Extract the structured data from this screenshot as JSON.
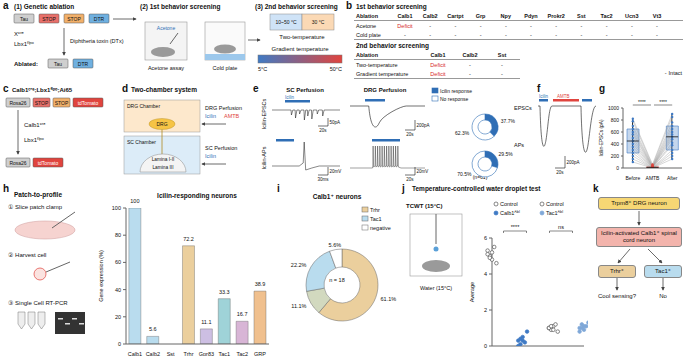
{
  "panels": {
    "a": {
      "letter": "a",
      "step1": {
        "title": "(1) Genetic ablation",
        "construct": [
          "Tau",
          "STOP",
          "STOP",
          "DTR"
        ],
        "drivers": [
          "Xᶜʳᵉ",
          "Lbx1ᶠˡᵖᵒ"
        ],
        "toxin": "Diphtheria toxin (DTx)",
        "ablated_label": "Ablated:",
        "ablated_construct": [
          "Tau",
          "DTR"
        ]
      },
      "step2": {
        "title": "(2) 1st behavior screening",
        "reagent": "Acetone",
        "tests": [
          "Acetone assay",
          "Cold plate"
        ]
      },
      "step3": {
        "title": "(3) 2nd behavior screening",
        "two_temperature": {
          "label": "Two-temperature",
          "zones": [
            "10~50 °C",
            "30 °C"
          ]
        },
        "gradient": {
          "label": "Gradient temperature",
          "ends": [
            "5°C",
            "50°C"
          ]
        }
      }
    },
    "b": {
      "letter": "b",
      "tables": [
        {
          "title": "1st behavior screening",
          "header": [
            "Ablation",
            "Calb1",
            "Calb2",
            "Cartpt",
            "Grp",
            "Npy",
            "Pdyn",
            "Prokr2",
            "Sst",
            "Tac2",
            "Ucn3",
            "Vt3"
          ],
          "rows": [
            [
              "Acetone",
              "Deficit",
              "-",
              "-",
              "-",
              "-",
              "-",
              "-",
              "-",
              "-",
              "-",
              "-"
            ],
            [
              "Cold plate",
              "-",
              "-",
              "-",
              "-",
              "-",
              "-",
              "-",
              "-",
              "-",
              "-",
              "-"
            ]
          ]
        },
        {
          "title": "2nd behavior screening",
          "header": [
            "Ablation",
            "Calb1",
            "Calb2",
            "Sst"
          ],
          "rows": [
            [
              "Two-temperature",
              "Deficit",
              "-",
              "-"
            ],
            [
              "Gradient temperature",
              "Deficit",
              "-",
              "-"
            ]
          ]
        }
      ],
      "key": {
        "symbol": "-",
        "label": "Intact"
      }
    },
    "c": {
      "letter": "c",
      "title": "Calb1ᶜʳᵉ;Lbx1ᶠˡᵖᵒ;Ai65",
      "construct": [
        "Rosa26",
        "STOP",
        "STOP",
        "tdTomato"
      ],
      "drivers": [
        "Calb1ᶜʳᵉ",
        "Lbx1ᶠˡᵖᵒ"
      ],
      "result": [
        "Rosa26",
        "tdTomato"
      ]
    },
    "d": {
      "letter": "d",
      "title": "Two-chamber system",
      "drg_chamber": "DRG Chamber",
      "drg": "DRG",
      "sc_chamber": "SC Chamber",
      "laminae": [
        "Lamina I-II",
        "Lamina III"
      ],
      "drg_perfusion": {
        "label": "DRG Perfusion",
        "drugs": [
          "Icilin",
          "AMTB"
        ]
      },
      "sc_perfusion": {
        "label": "SC Perfusion",
        "drugs": [
          "Icilin"
        ]
      }
    },
    "e": {
      "letter": "e",
      "columns": [
        "SC Perfusion",
        "DRG Perfusion"
      ],
      "rows": [
        "Icilin-EPSCs",
        "Icilin-APs"
      ],
      "stimulus": "Icilin",
      "scale_bars": [
        [
          "50pA",
          "20s"
        ],
        [
          "200pA",
          "20s"
        ],
        [
          "20mV",
          "30ms"
        ],
        [
          "20mV",
          "20s"
        ]
      ],
      "n": "(n=61)"
    },
    "f": {
      "letter": "f",
      "drugs": [
        "Icilin",
        "AMTB"
      ],
      "scale_bar": [
        "200pA",
        "20s"
      ]
    },
    "g": {
      "letter": "g"
    },
    "h": {
      "letter": "h",
      "title": "Patch-to-profile",
      "steps": [
        "① Slice patch clamp",
        "② Harvest cell",
        "③ Single Cell RT-PCR"
      ]
    },
    "i": {
      "letter": "i"
    },
    "j": {
      "letter": "j",
      "test": "TCWT (15°C)",
      "water": "Water (15°C)"
    },
    "k": {
      "letter": "k",
      "nodes": [
        "Trpm8⁺ DRG neuron",
        "Icilin-activated Calb1⁺ spinal cord neuron",
        "Trhr⁺",
        "Tac1⁺"
      ],
      "question": "Cool sensing?",
      "answer": "No"
    }
  },
  "chart_data": [
    {
      "panel": "e",
      "type": "pie",
      "title": "EPSCs",
      "categories": [
        "Icilin response",
        "No response"
      ],
      "values": [
        37.7,
        62.3
      ],
      "value_labels": [
        "37.7%",
        "62.3%"
      ],
      "colors": [
        "#2f6eb5",
        "#ffffff"
      ],
      "data_labels": true,
      "legend": "top"
    },
    {
      "panel": "e",
      "type": "pie",
      "title": "APs",
      "categories": [
        "Icilin response",
        "No response"
      ],
      "values": [
        29.5,
        70.5
      ],
      "value_labels": [
        "29.5%",
        "70.5%"
      ],
      "colors": [
        "#2f6eb5",
        "#ffffff"
      ],
      "data_labels": true
    },
    {
      "panel": "g",
      "type": "box",
      "y_label": "Icilin-EPSCs (pA)",
      "categories": [
        "Before",
        "AMTB",
        "After"
      ],
      "colors": [
        "#3f7ac4",
        "#e0443e",
        "#3f7ac4"
      ],
      "ylim": [
        0,
        1000
      ],
      "yticks": [
        0,
        200,
        400,
        600,
        800,
        1000
      ],
      "box": [
        {
          "min": 100,
          "q1": 250,
          "median": 450,
          "q3": 650,
          "max": 820
        },
        {
          "min": 0,
          "q1": 0,
          "median": 10,
          "q3": 20,
          "max": 60
        },
        {
          "min": 150,
          "q1": 300,
          "median": 520,
          "q3": 700,
          "max": 900
        }
      ],
      "cells": [
        [
          820,
          60,
          900
        ],
        [
          780,
          40,
          850
        ],
        [
          700,
          30,
          760
        ],
        [
          650,
          25,
          700
        ],
        [
          600,
          20,
          650
        ],
        [
          560,
          15,
          600
        ],
        [
          500,
          15,
          560
        ],
        [
          450,
          10,
          520
        ],
        [
          400,
          10,
          480
        ],
        [
          350,
          5,
          420
        ],
        [
          300,
          5,
          380
        ],
        [
          250,
          0,
          300
        ],
        [
          200,
          0,
          250
        ],
        [
          150,
          0,
          200
        ],
        [
          100,
          0,
          150
        ]
      ],
      "annotations": [
        "****",
        "****"
      ]
    },
    {
      "panel": "h",
      "type": "bar",
      "title": "Icilin-responding neurons",
      "y_label": "Gene expression (%)",
      "categories": [
        "Calb1",
        "Calb2",
        "Sst",
        "Trhr",
        "Gpr83",
        "Tac1",
        "Tac2",
        "GRP"
      ],
      "values": [
        100,
        5.6,
        0,
        72.2,
        11.1,
        33.3,
        16.7,
        38.9
      ],
      "colors": [
        "#b9dcee",
        "#b9dcee",
        "#b9dcee",
        "#ebcf9d",
        "#cdbfe3",
        "#9fd3d8",
        "#d8b5d6",
        "#f0c08e"
      ],
      "ylim": [
        0,
        100
      ],
      "yticks": [
        0,
        20,
        40,
        60,
        80,
        100
      ],
      "data_labels": true
    },
    {
      "panel": "i",
      "type": "pie",
      "title": "Calb1⁺ neurons",
      "center_label": "n = 18",
      "categories": [
        "Trhr",
        null,
        "Tac1",
        "negative"
      ],
      "values": [
        61.1,
        11.1,
        22.2,
        5.6
      ],
      "value_labels": [
        "61.1%",
        "11.1%",
        "22.2%",
        "5.6%"
      ],
      "colors": [
        "#ebcf9d",
        "#d2d9bf",
        "#b9dcee",
        "#ffffff"
      ],
      "data_labels": true,
      "legend": "top-right"
    },
    {
      "panel": "j",
      "type": "scatter",
      "title": "Temperature-controlled water droplet test",
      "y_label": "Average",
      "categories": [
        null,
        null,
        null,
        null
      ],
      "series": [
        {
          "name": "Control",
          "color": "#555555",
          "marker": "open-circle",
          "values": [
            [
              5.3,
              5.0,
              4.8,
              5.5,
              4.6,
              5.1,
              4.9,
              5.2
            ],
            null,
            null,
            null
          ]
        },
        {
          "name": "Calb1ᴬᵇˡ",
          "color": "#3f7ac4",
          "marker": "circle",
          "values": [
            null,
            [
              0.3,
              0.1,
              0.5,
              0.2,
              0.8,
              0.0,
              0.4,
              0.3
            ],
            null,
            null
          ]
        },
        {
          "name": "Control",
          "color": "#555555",
          "marker": "open-circle",
          "values": [
            null,
            null,
            [
              1.0,
              0.9,
              1.1,
              1.2,
              0.8,
              1.0,
              1.1,
              0.9
            ],
            null
          ]
        },
        {
          "name": "Tac1ᴬᵇˡ",
          "color": "#7fa8d8",
          "marker": "circle",
          "values": [
            null,
            null,
            null,
            [
              1.0,
              1.2,
              0.9,
              1.1,
              1.3,
              0.8,
              1.0,
              1.1
            ]
          ]
        }
      ],
      "ylim": [
        0,
        6
      ],
      "yticks": [
        0,
        2,
        4,
        6
      ],
      "annotations": [
        "****",
        "ns"
      ],
      "tick_labels": "y"
    }
  ]
}
